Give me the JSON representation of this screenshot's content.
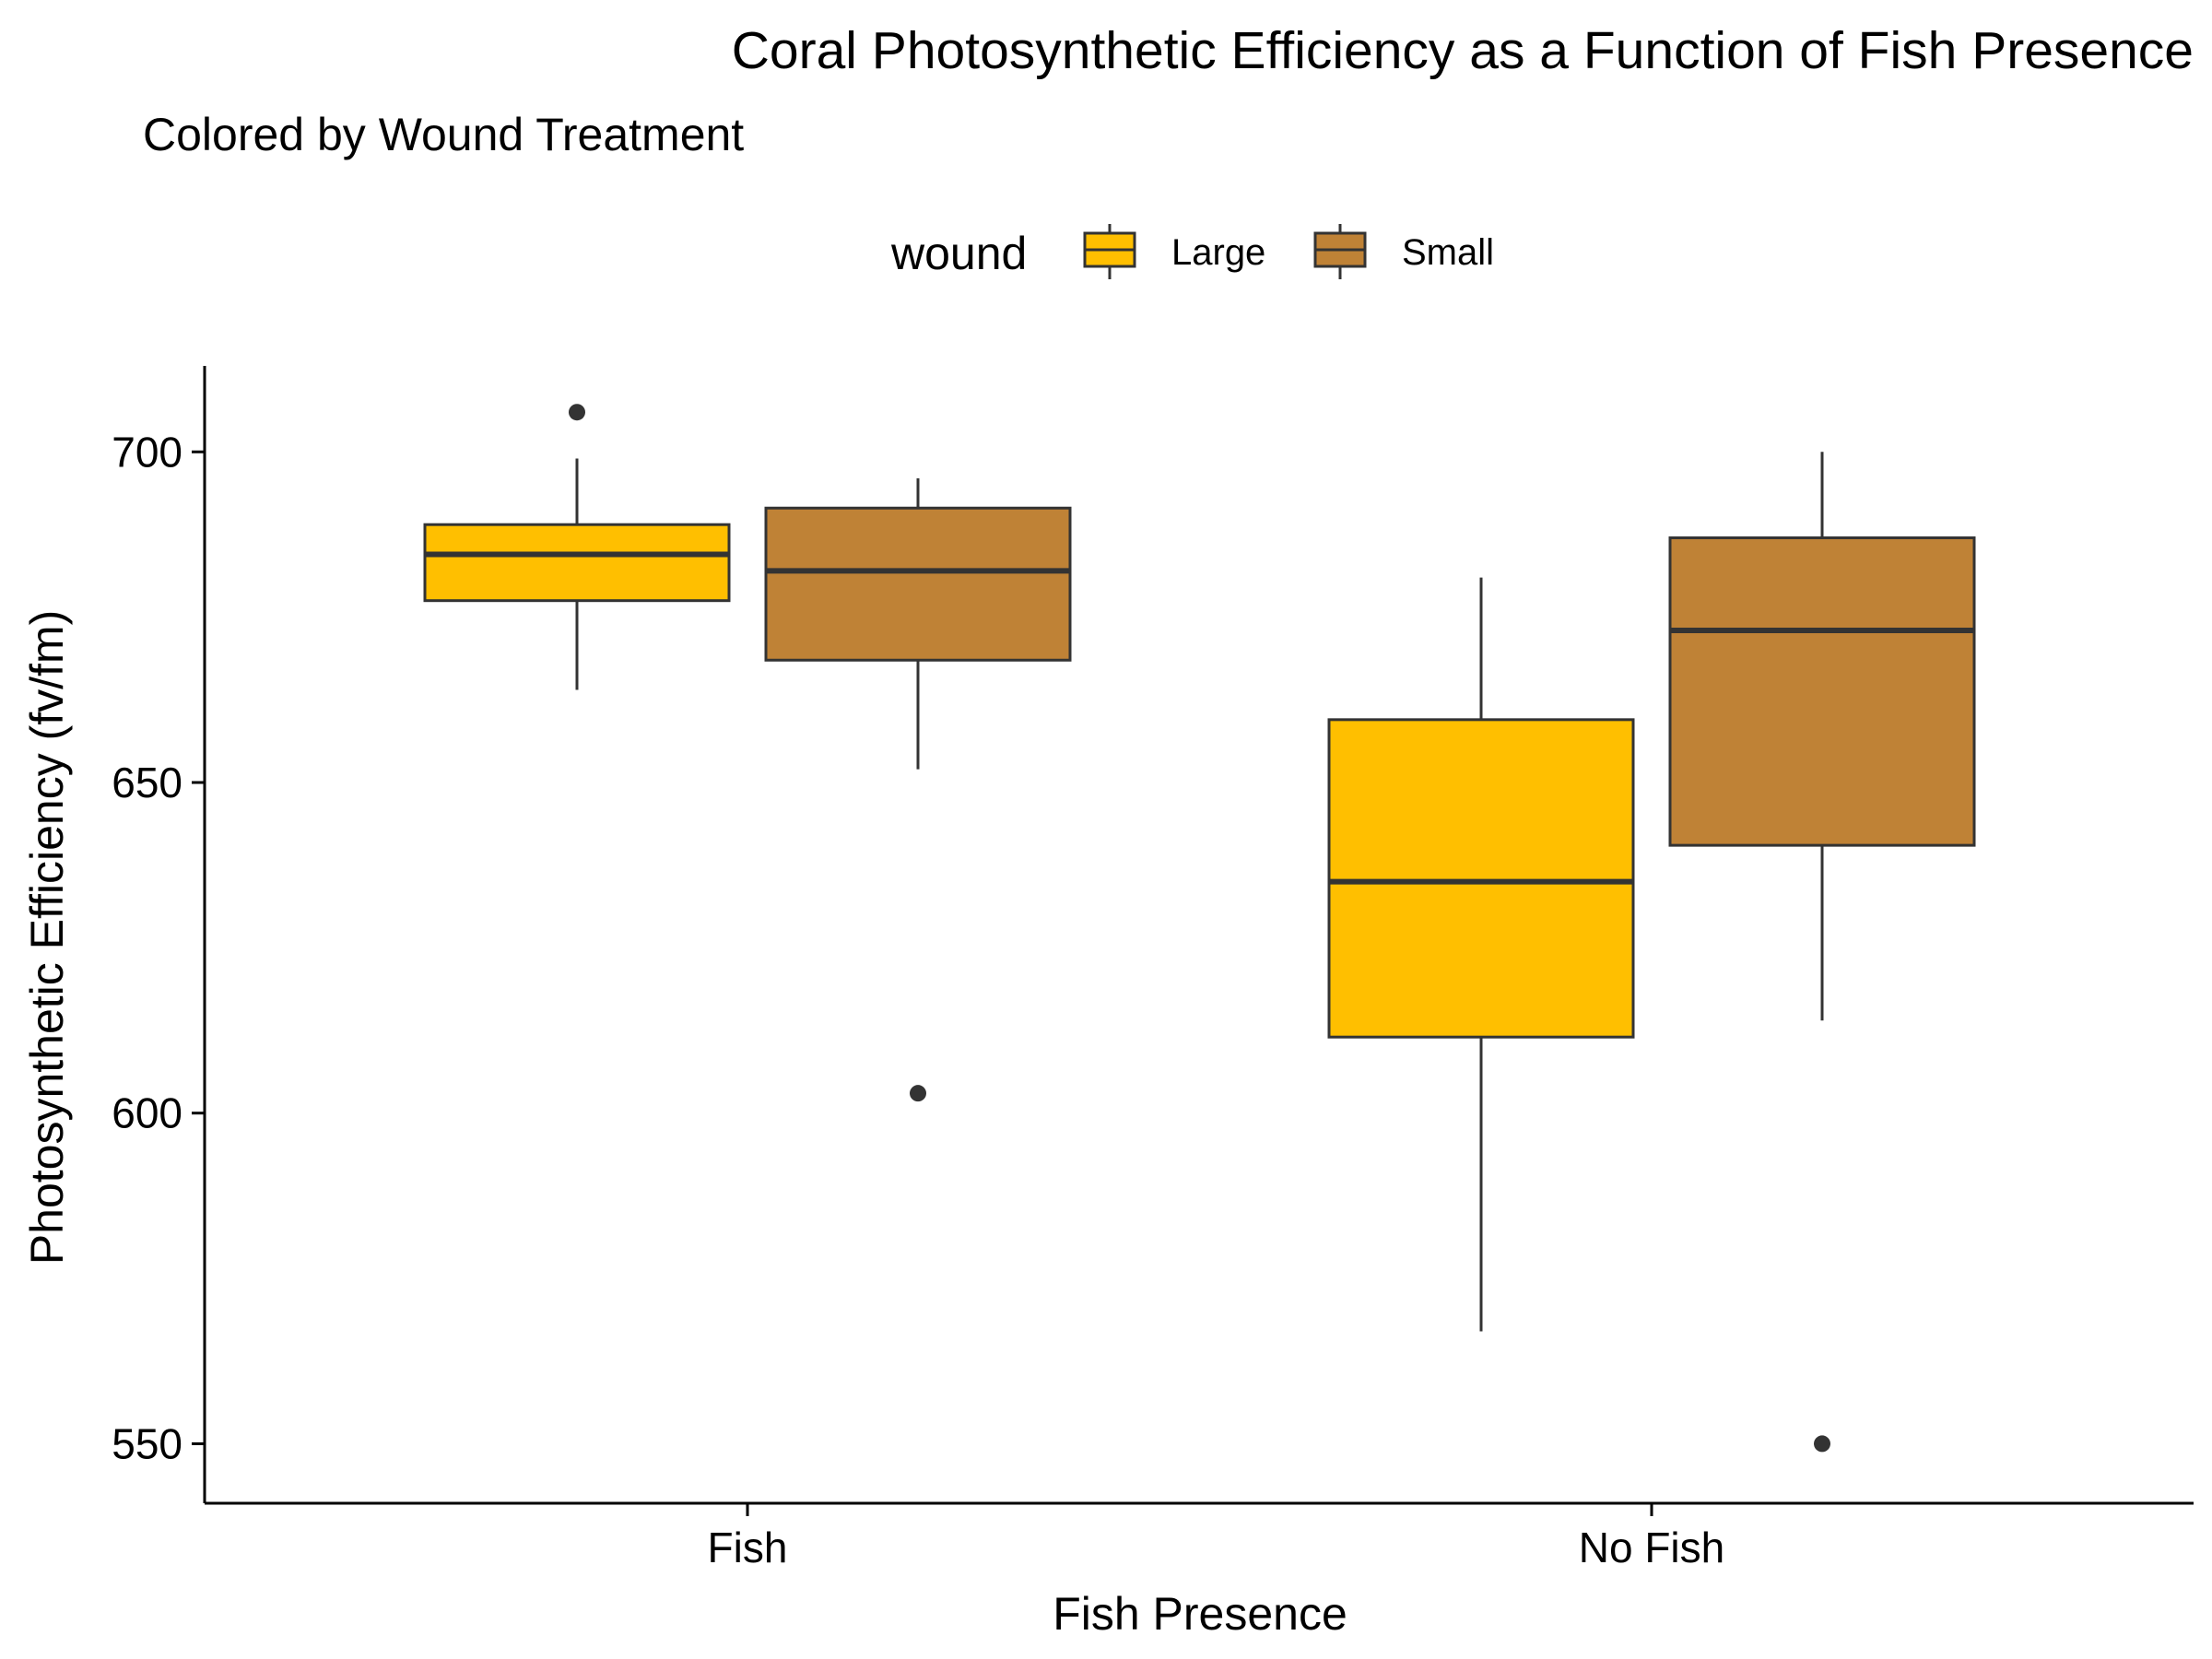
{
  "chart_data": {
    "type": "box",
    "title": "Coral Photosynthetic Efficiency as a Function of Fish Presence",
    "subtitle": "Colored by Wound Treatment",
    "xlabel": "Fish Presence",
    "ylabel": "Photosynthetic Efficiency (fv/fm)",
    "categories": [
      "Fish",
      "No Fish"
    ],
    "ylim": [
      541,
      713
    ],
    "yticks": [
      550,
      600,
      650,
      700
    ],
    "grid": false,
    "legend": {
      "title": "wound",
      "position": "top"
    },
    "series": [
      {
        "name": "Large",
        "color": "#FFBF00",
        "boxes": [
          {
            "category": "Fish",
            "whisker_low": 664,
            "q1": 677.5,
            "median": 684.5,
            "q3": 689,
            "whisker_high": 699,
            "outliers": [
              706
            ]
          },
          {
            "category": "No Fish",
            "whisker_low": 567,
            "q1": 611.5,
            "median": 635,
            "q3": 659.5,
            "whisker_high": 681,
            "outliers": []
          }
        ]
      },
      {
        "name": "Small",
        "color": "#BF8236",
        "boxes": [
          {
            "category": "Fish",
            "whisker_low": 652,
            "q1": 668.5,
            "median": 682,
            "q3": 691.5,
            "whisker_high": 696,
            "outliers": [
              603
            ]
          },
          {
            "category": "No Fish",
            "whisker_low": 614,
            "q1": 640.5,
            "median": 673,
            "q3": 687,
            "whisker_high": 700,
            "outliers": [
              550
            ]
          }
        ]
      }
    ]
  }
}
